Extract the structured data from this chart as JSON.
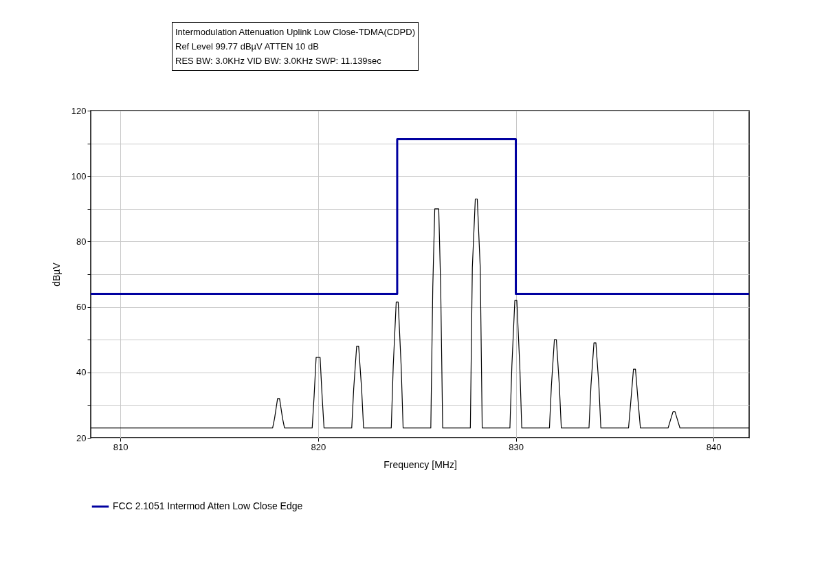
{
  "chart_data": {
    "type": "line",
    "title": "Intermodulation Attenuation Uplink Low Close-TDMA(CDPD)",
    "subtitle": "Ref Level 99.77 dBµV    ATTEN 10 dB",
    "annotations": [
      "RES BW: 3.0KHz  VID BW: 3.0KHz  SWP: 11.139sec"
    ],
    "xlabel": "Frequency [MHz]",
    "ylabel": "dBµV",
    "xlim": [
      808.5,
      841.8
    ],
    "xticks": [
      810,
      820,
      830,
      840
    ],
    "ylim": [
      20,
      120
    ],
    "yticks": [
      20,
      {
        "value": 30,
        "label": null
      },
      40,
      {
        "value": 50,
        "label": null
      },
      60,
      {
        "value": 70,
        "label": null
      },
      80,
      {
        "value": 90,
        "label": null
      },
      100,
      {
        "value": 110,
        "label": null
      },
      120
    ],
    "grid": true,
    "legend": "bottom",
    "line_style": "solid",
    "series": [
      {
        "color": "#000000",
        "x": [
          808.5,
          817.7,
          817.8,
          817.95,
          818.05,
          818.2,
          818.3,
          819.7,
          819.8,
          819.9,
          820.1,
          820.2,
          820.3,
          821.7,
          821.8,
          821.95,
          822.05,
          822.2,
          822.3,
          823.7,
          823.8,
          823.95,
          824.05,
          824.2,
          824.3,
          825.7,
          825.8,
          825.9,
          826.1,
          826.2,
          826.3,
          827.7,
          827.8,
          827.95,
          828.05,
          828.2,
          828.3,
          829.7,
          829.8,
          829.95,
          830.05,
          830.2,
          830.3,
          831.7,
          831.8,
          831.95,
          832.05,
          832.2,
          832.3,
          833.7,
          833.8,
          833.95,
          834.05,
          834.2,
          834.3,
          835.7,
          835.8,
          835.95,
          836.05,
          836.2,
          836.3,
          837.7,
          837.8,
          837.95,
          838.05,
          838.2,
          838.3,
          841.8
        ],
        "values": [
          23,
          23,
          26,
          32,
          32,
          26,
          23,
          23,
          33,
          44.6,
          44.6,
          33,
          23,
          23,
          35,
          48,
          48,
          35,
          23,
          23,
          42,
          61.5,
          61.5,
          42,
          23,
          23,
          66,
          90,
          90,
          66,
          23,
          23,
          72,
          93,
          93,
          72,
          23,
          23,
          42,
          62,
          62,
          42,
          23,
          23,
          36,
          50,
          50,
          36,
          23,
          23,
          36,
          49,
          49,
          36,
          23,
          23,
          30,
          41,
          41,
          30,
          23,
          23,
          25,
          28,
          28,
          25,
          23,
          23
        ]
      },
      {
        "name": "FCC 2.1051 Intermod Atten Low Close Edge",
        "color": "#0000a0",
        "x": [
          808.5,
          824,
          824,
          830,
          830,
          841.8
        ],
        "values": [
          64,
          64,
          111.3,
          111.3,
          64,
          64
        ]
      }
    ]
  }
}
